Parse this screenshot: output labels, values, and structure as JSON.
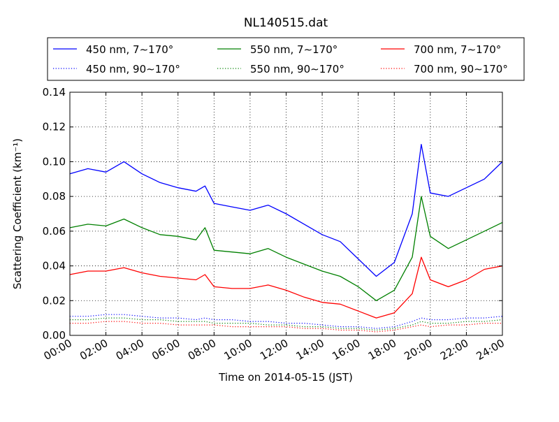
{
  "chart_data": {
    "type": "line",
    "title": "NL140515.dat",
    "xlabel": "Time on 2014-05-15 (JST)",
    "ylabel": "Scattering Coefficient (km⁻¹)",
    "xlim": [
      0,
      24
    ],
    "ylim": [
      0,
      0.14
    ],
    "x_ticks": [
      0,
      2,
      4,
      6,
      8,
      10,
      12,
      14,
      16,
      18,
      20,
      22,
      24
    ],
    "x_tick_labels": [
      "00:00",
      "02:00",
      "04:00",
      "06:00",
      "08:00",
      "10:00",
      "12:00",
      "14:00",
      "16:00",
      "18:00",
      "20:00",
      "22:00",
      "24:00"
    ],
    "y_ticks": [
      0,
      0.02,
      0.04,
      0.06,
      0.08,
      0.1,
      0.12,
      0.14
    ],
    "y_tick_labels": [
      "0.00",
      "0.02",
      "0.04",
      "0.06",
      "0.08",
      "0.10",
      "0.12",
      "0.14"
    ],
    "grid": true,
    "legend_position": "top",
    "x": [
      0,
      1,
      2,
      3,
      4,
      5,
      6,
      7,
      7.5,
      8,
      9,
      10,
      11,
      12,
      13,
      14,
      15,
      16,
      17,
      18,
      19,
      19.5,
      20,
      21,
      22,
      23,
      24
    ],
    "series": [
      {
        "name": "450 nm, 7∼170°",
        "color": "#0000ff",
        "style": "solid",
        "values": [
          0.093,
          0.096,
          0.094,
          0.1,
          0.093,
          0.088,
          0.085,
          0.083,
          0.086,
          0.076,
          0.074,
          0.072,
          0.075,
          0.07,
          0.064,
          0.058,
          0.054,
          0.044,
          0.034,
          0.042,
          0.07,
          0.11,
          0.082,
          0.08,
          0.085,
          0.09,
          0.1
        ]
      },
      {
        "name": "450 nm, 90∼170°",
        "color": "#0000ff",
        "style": "dotted",
        "values": [
          0.011,
          0.011,
          0.012,
          0.012,
          0.011,
          0.01,
          0.01,
          0.009,
          0.01,
          0.009,
          0.009,
          0.008,
          0.008,
          0.007,
          0.007,
          0.006,
          0.005,
          0.005,
          0.004,
          0.005,
          0.008,
          0.01,
          0.009,
          0.009,
          0.01,
          0.01,
          0.011
        ]
      },
      {
        "name": "550 nm, 7∼170°",
        "color": "#008000",
        "style": "solid",
        "values": [
          0.062,
          0.064,
          0.063,
          0.067,
          0.062,
          0.058,
          0.057,
          0.055,
          0.062,
          0.049,
          0.048,
          0.047,
          0.05,
          0.045,
          0.041,
          0.037,
          0.034,
          0.028,
          0.02,
          0.026,
          0.045,
          0.08,
          0.057,
          0.05,
          0.055,
          0.06,
          0.065
        ]
      },
      {
        "name": "550 nm, 90∼170°",
        "color": "#008000",
        "style": "dotted",
        "values": [
          0.009,
          0.009,
          0.01,
          0.01,
          0.009,
          0.009,
          0.008,
          0.008,
          0.008,
          0.007,
          0.007,
          0.007,
          0.006,
          0.006,
          0.005,
          0.005,
          0.004,
          0.004,
          0.003,
          0.004,
          0.006,
          0.008,
          0.007,
          0.007,
          0.008,
          0.008,
          0.009
        ]
      },
      {
        "name": "700 nm, 7∼170°",
        "color": "#ff0000",
        "style": "solid",
        "values": [
          0.035,
          0.037,
          0.037,
          0.039,
          0.036,
          0.034,
          0.033,
          0.032,
          0.035,
          0.028,
          0.027,
          0.027,
          0.029,
          0.026,
          0.022,
          0.019,
          0.018,
          0.014,
          0.01,
          0.013,
          0.024,
          0.045,
          0.032,
          0.028,
          0.032,
          0.038,
          0.04
        ]
      },
      {
        "name": "700 nm, 90∼170°",
        "color": "#ff0000",
        "style": "dotted",
        "values": [
          0.007,
          0.007,
          0.008,
          0.008,
          0.007,
          0.007,
          0.006,
          0.006,
          0.006,
          0.006,
          0.005,
          0.005,
          0.005,
          0.005,
          0.004,
          0.004,
          0.003,
          0.003,
          0.002,
          0.003,
          0.005,
          0.006,
          0.005,
          0.006,
          0.006,
          0.007,
          0.007
        ]
      }
    ]
  }
}
